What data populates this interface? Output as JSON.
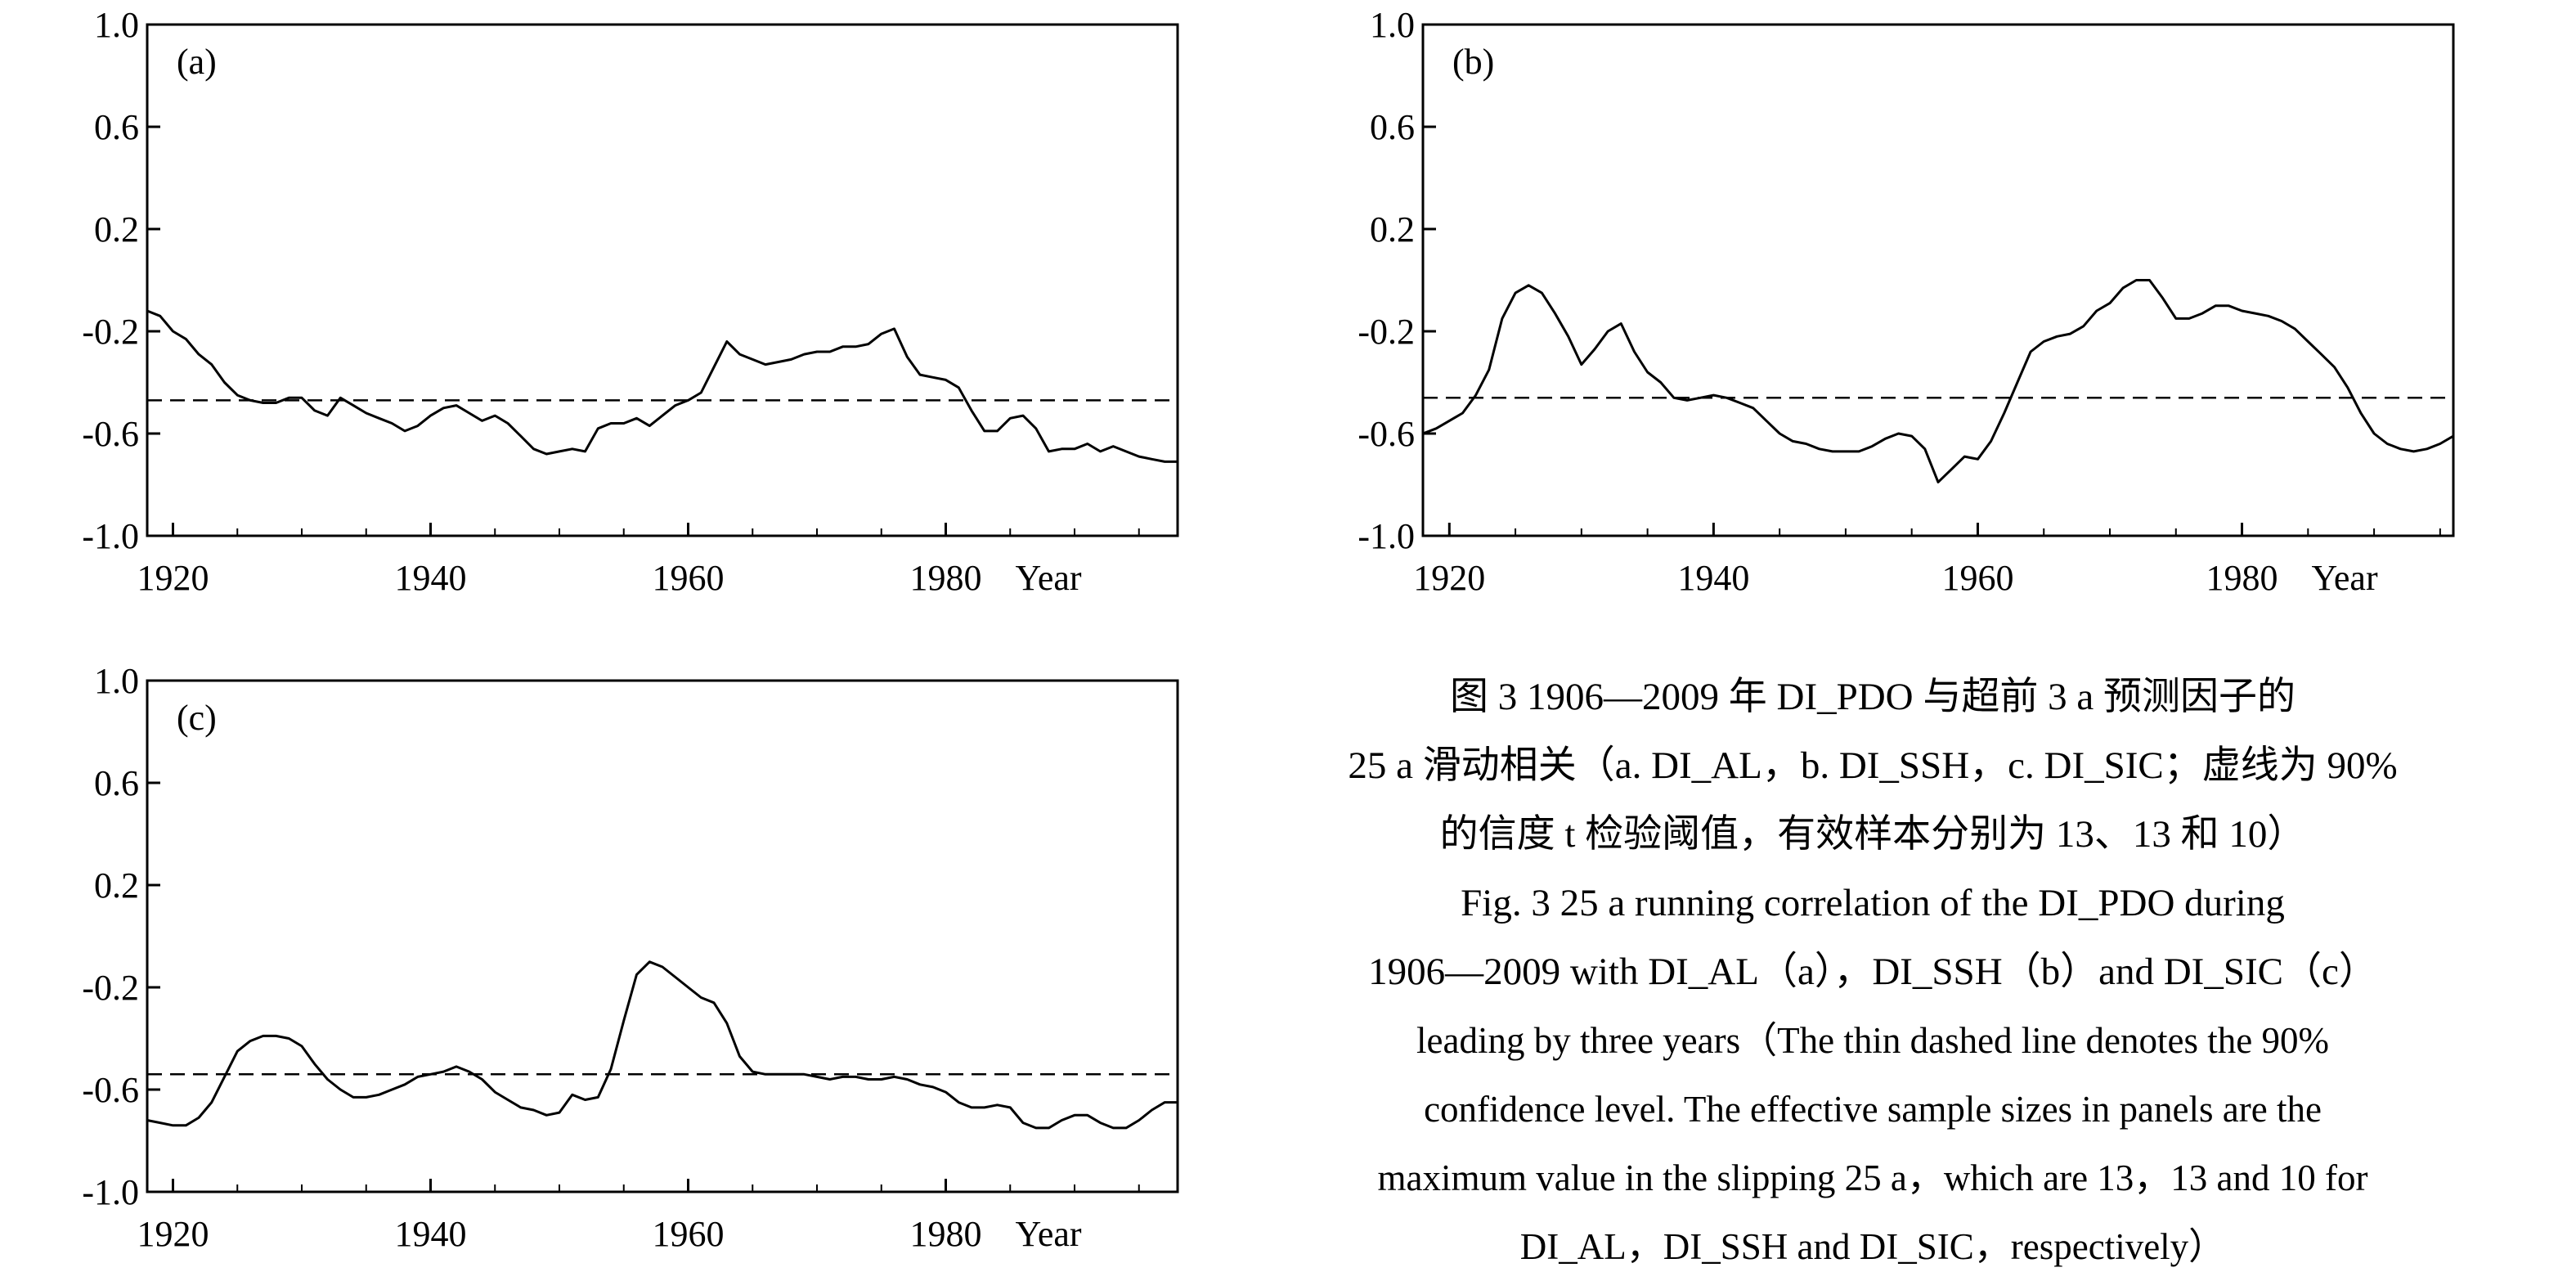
{
  "chart_data": [
    {
      "type": "line",
      "panel_label": "(a)",
      "xlabel": "Year",
      "x_ticks": [
        "1920",
        "1940",
        "1960",
        "1980"
      ],
      "y_ticks": [
        "1.0",
        "0.6",
        "0.2",
        "-0.2",
        "-0.6",
        "-1.0"
      ],
      "ylim": [
        -1.0,
        1.0
      ],
      "xlim": [
        1918,
        1998
      ],
      "threshold": -0.47,
      "series": [
        {
          "name": "DI_AL",
          "x": [
            1918,
            1919,
            1920,
            1921,
            1922,
            1923,
            1924,
            1925,
            1926,
            1927,
            1928,
            1929,
            1930,
            1931,
            1932,
            1933,
            1934,
            1935,
            1936,
            1937,
            1938,
            1939,
            1940,
            1941,
            1942,
            1943,
            1944,
            1945,
            1946,
            1947,
            1948,
            1949,
            1950,
            1951,
            1952,
            1953,
            1954,
            1955,
            1956,
            1957,
            1958,
            1959,
            1960,
            1961,
            1962,
            1963,
            1964,
            1965,
            1966,
            1967,
            1968,
            1969,
            1970,
            1971,
            1972,
            1973,
            1974,
            1975,
            1976,
            1977,
            1978,
            1979,
            1980,
            1981,
            1982,
            1983,
            1984,
            1985,
            1986,
            1987,
            1988,
            1989,
            1990,
            1991,
            1992,
            1993,
            1994,
            1995,
            1996,
            1997,
            1998
          ],
          "values": [
            -0.12,
            -0.14,
            -0.2,
            -0.23,
            -0.29,
            -0.33,
            -0.4,
            -0.45,
            -0.47,
            -0.48,
            -0.48,
            -0.46,
            -0.46,
            -0.51,
            -0.53,
            -0.46,
            -0.49,
            -0.52,
            -0.54,
            -0.56,
            -0.59,
            -0.57,
            -0.53,
            -0.5,
            -0.49,
            -0.52,
            -0.55,
            -0.53,
            -0.56,
            -0.61,
            -0.66,
            -0.68,
            -0.67,
            -0.66,
            -0.67,
            -0.58,
            -0.56,
            -0.56,
            -0.54,
            -0.57,
            -0.53,
            -0.49,
            -0.47,
            -0.44,
            -0.34,
            -0.24,
            -0.29,
            -0.31,
            -0.33,
            -0.32,
            -0.31,
            -0.29,
            -0.28,
            -0.28,
            -0.26,
            -0.26,
            -0.25,
            -0.21,
            -0.19,
            -0.3,
            -0.37,
            -0.38,
            -0.39,
            -0.42,
            -0.51,
            -0.59,
            -0.59,
            -0.54,
            -0.53,
            -0.58,
            -0.67,
            -0.66,
            -0.66,
            -0.64,
            -0.67,
            -0.65,
            -0.67,
            -0.69,
            -0.7,
            -0.71,
            -0.71
          ]
        }
      ]
    },
    {
      "type": "line",
      "panel_label": "(b)",
      "xlabel": "Year",
      "x_ticks": [
        "1920",
        "1940",
        "1960",
        "1980"
      ],
      "y_ticks": [
        "1.0",
        "0.6",
        "0.2",
        "-0.2",
        "-0.6",
        "-1.0"
      ],
      "ylim": [
        -1.0,
        1.0
      ],
      "xlim": [
        1918,
        1996
      ],
      "threshold": -0.46,
      "series": [
        {
          "name": "DI_SSH",
          "x": [
            1918,
            1919,
            1920,
            1921,
            1922,
            1923,
            1924,
            1925,
            1926,
            1927,
            1928,
            1929,
            1930,
            1931,
            1932,
            1933,
            1934,
            1935,
            1936,
            1937,
            1938,
            1939,
            1940,
            1941,
            1942,
            1943,
            1944,
            1945,
            1946,
            1947,
            1948,
            1949,
            1950,
            1951,
            1952,
            1953,
            1954,
            1955,
            1956,
            1957,
            1958,
            1959,
            1960,
            1961,
            1962,
            1963,
            1964,
            1965,
            1966,
            1967,
            1968,
            1969,
            1970,
            1971,
            1972,
            1973,
            1974,
            1975,
            1976,
            1977,
            1978,
            1979,
            1980,
            1981,
            1982,
            1983,
            1984,
            1985,
            1986,
            1987,
            1988,
            1989,
            1990,
            1991,
            1992,
            1993,
            1994,
            1995,
            1996
          ],
          "values": [
            -0.6,
            -0.58,
            -0.55,
            -0.52,
            -0.45,
            -0.35,
            -0.15,
            -0.05,
            -0.02,
            -0.05,
            -0.13,
            -0.22,
            -0.33,
            -0.27,
            -0.2,
            -0.17,
            -0.28,
            -0.36,
            -0.4,
            -0.46,
            -0.47,
            -0.46,
            -0.45,
            -0.46,
            -0.48,
            -0.5,
            -0.55,
            -0.6,
            -0.63,
            -0.64,
            -0.66,
            -0.67,
            -0.67,
            -0.67,
            -0.65,
            -0.62,
            -0.6,
            -0.61,
            -0.66,
            -0.79,
            -0.74,
            -0.69,
            -0.7,
            -0.63,
            -0.52,
            -0.4,
            -0.28,
            -0.24,
            -0.22,
            -0.21,
            -0.18,
            -0.12,
            -0.09,
            -0.03,
            0.0,
            0.0,
            -0.07,
            -0.15,
            -0.15,
            -0.13,
            -0.1,
            -0.1,
            -0.12,
            -0.13,
            -0.14,
            -0.16,
            -0.19,
            -0.24,
            -0.29,
            -0.34,
            -0.42,
            -0.52,
            -0.6,
            -0.64,
            -0.66,
            -0.67,
            -0.66,
            -0.64,
            -0.61
          ]
        }
      ]
    },
    {
      "type": "line",
      "panel_label": "(c)",
      "xlabel": "Year",
      "x_ticks": [
        "1920",
        "1940",
        "1960",
        "1980"
      ],
      "y_ticks": [
        "1.0",
        "0.6",
        "0.2",
        "-0.2",
        "-0.6",
        "-1.0"
      ],
      "ylim": [
        -1.0,
        1.0
      ],
      "xlim": [
        1918,
        1998
      ],
      "threshold": -0.54,
      "series": [
        {
          "name": "DI_SIC",
          "x": [
            1918,
            1919,
            1920,
            1921,
            1922,
            1923,
            1924,
            1925,
            1926,
            1927,
            1928,
            1929,
            1930,
            1931,
            1932,
            1933,
            1934,
            1935,
            1936,
            1937,
            1938,
            1939,
            1940,
            1941,
            1942,
            1943,
            1944,
            1945,
            1946,
            1947,
            1948,
            1949,
            1950,
            1951,
            1952,
            1953,
            1954,
            1955,
            1956,
            1957,
            1958,
            1959,
            1960,
            1961,
            1962,
            1963,
            1964,
            1965,
            1966,
            1967,
            1968,
            1969,
            1970,
            1971,
            1972,
            1973,
            1974,
            1975,
            1976,
            1977,
            1978,
            1979,
            1980,
            1981,
            1982,
            1983,
            1984,
            1985,
            1986,
            1987,
            1988,
            1989,
            1990,
            1991,
            1992,
            1993,
            1994,
            1995,
            1996,
            1997,
            1998
          ],
          "values": [
            -0.72,
            -0.73,
            -0.74,
            -0.74,
            -0.71,
            -0.65,
            -0.55,
            -0.45,
            -0.41,
            -0.39,
            -0.39,
            -0.4,
            -0.43,
            -0.5,
            -0.56,
            -0.6,
            -0.63,
            -0.63,
            -0.62,
            -0.6,
            -0.58,
            -0.55,
            -0.54,
            -0.53,
            -0.51,
            -0.53,
            -0.56,
            -0.61,
            -0.64,
            -0.67,
            -0.68,
            -0.7,
            -0.69,
            -0.62,
            -0.64,
            -0.63,
            -0.52,
            -0.33,
            -0.15,
            -0.1,
            -0.12,
            -0.16,
            -0.2,
            -0.24,
            -0.26,
            -0.34,
            -0.47,
            -0.53,
            -0.54,
            -0.54,
            -0.54,
            -0.54,
            -0.55,
            -0.56,
            -0.55,
            -0.55,
            -0.56,
            -0.56,
            -0.55,
            -0.56,
            -0.58,
            -0.59,
            -0.61,
            -0.65,
            -0.67,
            -0.67,
            -0.66,
            -0.67,
            -0.73,
            -0.75,
            -0.75,
            -0.72,
            -0.7,
            -0.7,
            -0.73,
            -0.75,
            -0.75,
            -0.72,
            -0.68,
            -0.65,
            -0.65
          ]
        }
      ]
    }
  ],
  "caption": {
    "zh_line1": "图 3    1906—2009 年 DI_PDO 与超前 3 a 预测因子的",
    "zh_line2": "25 a 滑动相关（a. DI_AL，b. DI_SSH，c. DI_SIC；虚线为 90%",
    "zh_line3": "的信度 t 检验阈值，有效样本分别为 13、13 和 10）",
    "en_line1": "Fig. 3    25 a running correlation of the DI_PDO during",
    "en_line2": "1906—2009 with DI_AL（a），DI_SSH（b）and DI_SIC（c）",
    "en_line3": "leading by three years（The thin dashed line denotes the 90%",
    "en_line4": "confidence level. The effective sample sizes in panels are the",
    "en_line5": "maximum value in the slipping 25 a，which are 13，13 and 10 for",
    "en_line6": "DI_AL，DI_SSH and DI_SIC，respectively）"
  }
}
